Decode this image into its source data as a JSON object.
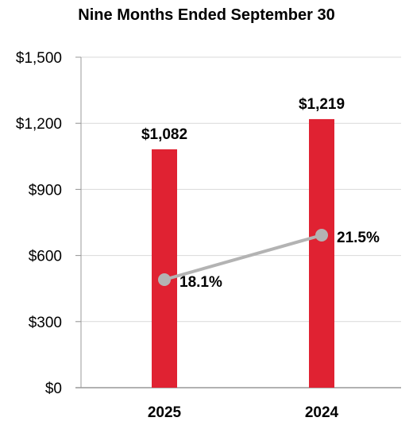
{
  "chart_data": {
    "type": "bar",
    "title": "Nine Months Ended September 30",
    "categories": [
      "2025",
      "2024"
    ],
    "series": [
      {
        "type": "bar",
        "values": [
          1082,
          1219
        ],
        "labels": [
          "$1,082",
          "$1,219"
        ],
        "color": "#e02232"
      },
      {
        "type": "line",
        "values": [
          18.1,
          21.5
        ],
        "labels": [
          "18.1%",
          "21.5%"
        ],
        "unit": "%",
        "color": "#b3b3b3"
      }
    ],
    "y_axis": {
      "range": [
        0,
        1500
      ],
      "ticks": [
        0,
        300,
        600,
        900,
        1200,
        1500
      ],
      "tick_labels": [
        "$0",
        "$300",
        "$600",
        "$900",
        "$1,200",
        "$1,500"
      ]
    },
    "grid": true,
    "legend": "none"
  }
}
